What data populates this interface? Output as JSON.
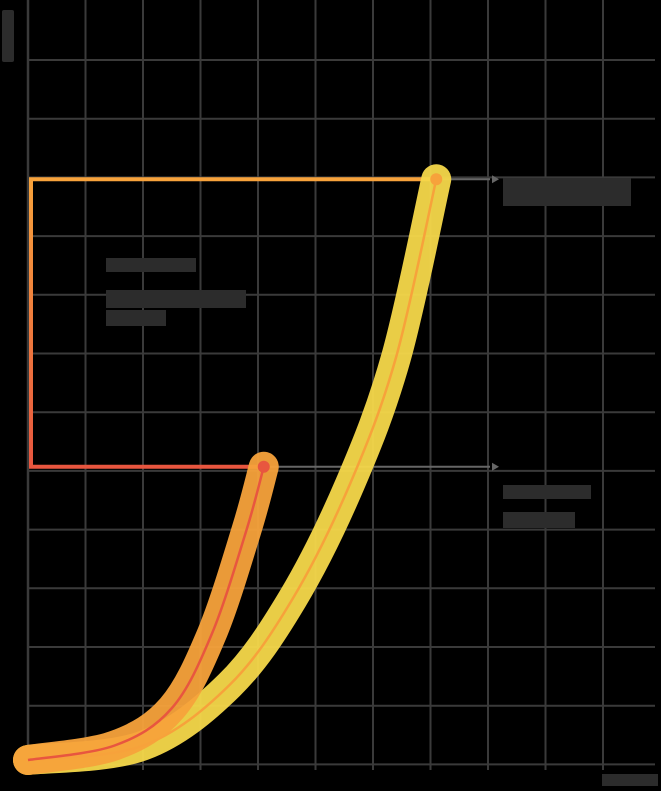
{
  "chart_data": {
    "type": "line",
    "title": "",
    "xlabel": "",
    "ylabel": "",
    "grid": true,
    "x_grid_lines": 11,
    "y_grid_lines": 13,
    "series": [
      {
        "color": "#e8563f",
        "glow": "#f7a23b",
        "points": [
          [
            0,
            0
          ],
          [
            1.5,
            0.25
          ],
          [
            2.5,
            0.9
          ],
          [
            3.2,
            2.2
          ],
          [
            3.8,
            4.0
          ],
          [
            4.1,
            5.1
          ]
        ],
        "endpoint": [
          4.1,
          5.1
        ]
      },
      {
        "color": "#f7a23b",
        "glow": "#f5d84a",
        "points": [
          [
            0,
            0
          ],
          [
            2,
            0.25
          ],
          [
            3.5,
            1.3
          ],
          [
            4.6,
            2.8
          ],
          [
            5.6,
            4.8
          ],
          [
            6.4,
            7.0
          ],
          [
            7.1,
            10.1
          ]
        ],
        "endpoint": [
          7.1,
          10.1
        ]
      }
    ],
    "bracket": {
      "from_y": 5.1,
      "to_y": 10.1,
      "color_top": "#f7a23b",
      "color_bottom": "#e8563f"
    }
  },
  "colors": {
    "background": "#000000",
    "grid": "#3a3a3a",
    "guide": "#666666",
    "label_block": "#2c2c2c"
  }
}
